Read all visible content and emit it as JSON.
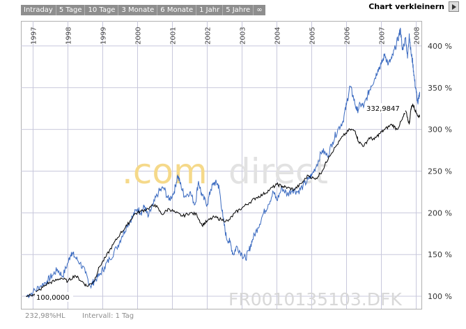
{
  "tabs": [
    "Intraday",
    "5 Tage",
    "10 Tage",
    "3 Monate",
    "6 Monate",
    "1 Jahr",
    "5 Jahre",
    "∞"
  ],
  "shrink_label": "Chart verkleinern",
  "watermark_left": ".com",
  "watermark_right": "direct",
  "symbol_watermark": "FR0010135103.DFK",
  "start_label": "100,0000",
  "last_label": "332,9847",
  "footer_left": "232,98%HL",
  "footer_interval": "Intervall: 1 Tag",
  "colors": {
    "blue_series": "#3a6ac0",
    "black_series": "#000000",
    "grid": "#c8c8dc",
    "tab_bg": "#8e8e8e"
  },
  "chart_data": {
    "type": "line",
    "x_ticks": [
      "1997",
      "1998",
      "1999",
      "2000",
      "2001",
      "2002",
      "2003",
      "2004",
      "2005",
      "2006",
      "2007",
      "2008"
    ],
    "y_ticks": [
      "100 %",
      "150 %",
      "200 %",
      "250 %",
      "300 %",
      "350 %",
      "400 %"
    ],
    "ylim": [
      85,
      430
    ],
    "xlim": [
      1996.65,
      2008.15
    ],
    "grid": true,
    "series": [
      {
        "color": "#3a6ac0",
        "points": [
          [
            1996.8,
            100
          ],
          [
            1997.0,
            105
          ],
          [
            1997.2,
            112
          ],
          [
            1997.4,
            118
          ],
          [
            1997.55,
            125
          ],
          [
            1997.7,
            132
          ],
          [
            1997.85,
            124
          ],
          [
            1998.0,
            140
          ],
          [
            1998.1,
            153
          ],
          [
            1998.2,
            147
          ],
          [
            1998.35,
            140
          ],
          [
            1998.5,
            128
          ],
          [
            1998.65,
            112
          ],
          [
            1998.75,
            118
          ],
          [
            1998.9,
            125
          ],
          [
            1999.05,
            135
          ],
          [
            1999.2,
            145
          ],
          [
            1999.4,
            158
          ],
          [
            1999.55,
            172
          ],
          [
            1999.7,
            185
          ],
          [
            1999.85,
            195
          ],
          [
            2000.0,
            205
          ],
          [
            2000.1,
            200
          ],
          [
            2000.2,
            208
          ],
          [
            2000.3,
            195
          ],
          [
            2000.45,
            210
          ],
          [
            2000.6,
            225
          ],
          [
            2000.75,
            230
          ],
          [
            2000.9,
            215
          ],
          [
            2001.05,
            225
          ],
          [
            2001.15,
            245
          ],
          [
            2001.25,
            232
          ],
          [
            2001.35,
            220
          ],
          [
            2001.5,
            225
          ],
          [
            2001.65,
            210
          ],
          [
            2001.75,
            238
          ],
          [
            2001.85,
            220
          ],
          [
            2002.0,
            210
          ],
          [
            2002.1,
            228
          ],
          [
            2002.2,
            236
          ],
          [
            2002.3,
            235
          ],
          [
            2002.35,
            228
          ],
          [
            2002.45,
            195
          ],
          [
            2002.55,
            170
          ],
          [
            2002.65,
            165
          ],
          [
            2002.75,
            150
          ],
          [
            2002.85,
            160
          ],
          [
            2003.0,
            150
          ],
          [
            2003.1,
            145
          ],
          [
            2003.2,
            155
          ],
          [
            2003.3,
            168
          ],
          [
            2003.45,
            182
          ],
          [
            2003.6,
            198
          ],
          [
            2003.75,
            210
          ],
          [
            2003.9,
            225
          ],
          [
            2004.0,
            215
          ],
          [
            2004.15,
            230
          ],
          [
            2004.3,
            222
          ],
          [
            2004.45,
            228
          ],
          [
            2004.6,
            225
          ],
          [
            2004.75,
            232
          ],
          [
            2004.9,
            240
          ],
          [
            2005.0,
            245
          ],
          [
            2005.15,
            258
          ],
          [
            2005.3,
            275
          ],
          [
            2005.45,
            268
          ],
          [
            2005.6,
            285
          ],
          [
            2005.75,
            300
          ],
          [
            2005.9,
            310
          ],
          [
            2006.0,
            330
          ],
          [
            2006.1,
            352
          ],
          [
            2006.2,
            338
          ],
          [
            2006.3,
            322
          ],
          [
            2006.4,
            330
          ],
          [
            2006.5,
            328
          ],
          [
            2006.6,
            340
          ],
          [
            2006.7,
            352
          ],
          [
            2006.8,
            360
          ],
          [
            2006.9,
            372
          ],
          [
            2007.0,
            378
          ],
          [
            2007.1,
            390
          ],
          [
            2007.2,
            378
          ],
          [
            2007.3,
            385
          ],
          [
            2007.4,
            398
          ],
          [
            2007.5,
            412
          ],
          [
            2007.55,
            420
          ],
          [
            2007.6,
            395
          ],
          [
            2007.7,
            410
          ],
          [
            2007.75,
            385
          ],
          [
            2007.8,
            415
          ],
          [
            2007.85,
            392
          ],
          [
            2007.9,
            380
          ],
          [
            2007.95,
            360
          ],
          [
            2008.0,
            345
          ],
          [
            2008.05,
            330
          ],
          [
            2008.1,
            345
          ]
        ]
      },
      {
        "color": "#000000",
        "points": [
          [
            1996.8,
            100
          ],
          [
            1997.0,
            102
          ],
          [
            1997.2,
            108
          ],
          [
            1997.4,
            115
          ],
          [
            1997.6,
            118
          ],
          [
            1997.8,
            122
          ],
          [
            1998.0,
            118
          ],
          [
            1998.2,
            125
          ],
          [
            1998.4,
            118
          ],
          [
            1998.55,
            112
          ],
          [
            1998.75,
            118
          ],
          [
            1998.9,
            135
          ],
          [
            1999.1,
            148
          ],
          [
            1999.3,
            162
          ],
          [
            1999.5,
            175
          ],
          [
            1999.7,
            185
          ],
          [
            1999.9,
            198
          ],
          [
            2000.1,
            202
          ],
          [
            2000.3,
            205
          ],
          [
            2000.5,
            210
          ],
          [
            2000.7,
            198
          ],
          [
            2000.9,
            205
          ],
          [
            2001.1,
            200
          ],
          [
            2001.3,
            196
          ],
          [
            2001.5,
            200
          ],
          [
            2001.7,
            198
          ],
          [
            2001.85,
            185
          ],
          [
            2002.0,
            190
          ],
          [
            2002.2,
            195
          ],
          [
            2002.4,
            192
          ],
          [
            2002.6,
            190
          ],
          [
            2002.8,
            200
          ],
          [
            2003.0,
            206
          ],
          [
            2003.2,
            212
          ],
          [
            2003.4,
            218
          ],
          [
            2003.6,
            222
          ],
          [
            2003.8,
            228
          ],
          [
            2004.0,
            234
          ],
          [
            2004.15,
            232
          ],
          [
            2004.3,
            230
          ],
          [
            2004.5,
            228
          ],
          [
            2004.7,
            235
          ],
          [
            2004.9,
            245
          ],
          [
            2005.1,
            240
          ],
          [
            2005.3,
            250
          ],
          [
            2005.5,
            268
          ],
          [
            2005.7,
            280
          ],
          [
            2005.9,
            292
          ],
          [
            2006.1,
            300
          ],
          [
            2006.25,
            298
          ],
          [
            2006.35,
            285
          ],
          [
            2006.5,
            280
          ],
          [
            2006.65,
            290
          ],
          [
            2006.8,
            288
          ],
          [
            2006.95,
            295
          ],
          [
            2007.1,
            300
          ],
          [
            2007.3,
            306
          ],
          [
            2007.45,
            300
          ],
          [
            2007.6,
            312
          ],
          [
            2007.7,
            322
          ],
          [
            2007.8,
            306
          ],
          [
            2007.85,
            325
          ],
          [
            2007.9,
            330
          ],
          [
            2008.0,
            320
          ],
          [
            2008.1,
            315
          ]
        ]
      }
    ]
  }
}
